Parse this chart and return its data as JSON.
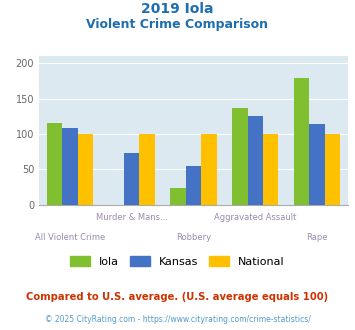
{
  "title_line1": "2019 Iola",
  "title_line2": "Violent Crime Comparison",
  "categories": [
    "All Violent Crime",
    "Murder & Mans...",
    "Robbery",
    "Aggravated Assault",
    "Rape"
  ],
  "series": {
    "Iola": [
      116,
      0,
      23,
      136,
      179
    ],
    "Kansas": [
      109,
      73,
      55,
      125,
      114
    ],
    "National": [
      100,
      100,
      100,
      100,
      100
    ]
  },
  "colors": {
    "Iola": "#80c030",
    "Kansas": "#4472c4",
    "National": "#ffc000"
  },
  "ylim": [
    0,
    210
  ],
  "yticks": [
    0,
    50,
    100,
    150,
    200
  ],
  "plot_bg": "#dce9f0",
  "title_color": "#1e6eb0",
  "xlabel_color": "#9a8ab0",
  "footer_text": "Compared to U.S. average. (U.S. average equals 100)",
  "footer_color": "#cc3300",
  "copyright_text": "© 2025 CityRating.com - https://www.cityrating.com/crime-statistics/",
  "copyright_color": "#5599cc",
  "bar_width": 0.25
}
